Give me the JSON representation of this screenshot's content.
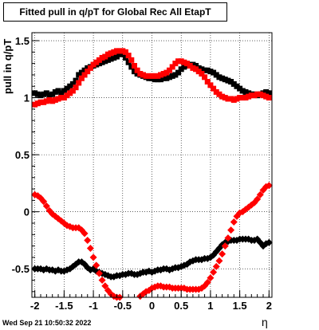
{
  "chart_data": {
    "type": "scatter",
    "title": "Fitted pull in q/pT for Global Rec All EtapT",
    "xlabel": "η",
    "ylabel": "pull in q/pT",
    "xlim": [
      -2.05,
      2.05
    ],
    "ylim": [
      -0.75,
      1.57
    ],
    "xticks": [
      "-2",
      "-1.5",
      "-1",
      "-0.5",
      "0",
      "0.5",
      "1",
      "1.5",
      "2"
    ],
    "yticks": [
      "-0.5",
      "0",
      "0.5",
      "1",
      "1.5"
    ],
    "grid": true,
    "series": [
      {
        "color": "#000000",
        "marker": "square",
        "x": [
          -2.0,
          -1.95,
          -1.9,
          -1.85,
          -1.8,
          -1.75,
          -1.7,
          -1.65,
          -1.6,
          -1.55,
          -1.5,
          -1.45,
          -1.4,
          -1.35,
          -1.3,
          -1.25,
          -1.2,
          -1.15,
          -1.1,
          -1.05,
          -1.0,
          -0.95,
          -0.9,
          -0.85,
          -0.8,
          -0.75,
          -0.7,
          -0.65,
          -0.6,
          -0.55,
          -0.5,
          -0.45,
          -0.4,
          -0.35,
          -0.3,
          -0.25,
          -0.2,
          -0.15,
          -0.1,
          -0.05,
          0.0,
          0.05,
          0.1,
          0.15,
          0.2,
          0.25,
          0.3,
          0.35,
          0.4,
          0.45,
          0.5,
          0.55,
          0.6,
          0.65,
          0.7,
          0.75,
          0.8,
          0.85,
          0.9,
          0.95,
          1.0,
          1.05,
          1.1,
          1.15,
          1.2,
          1.25,
          1.3,
          1.35,
          1.4,
          1.45,
          1.5,
          1.55,
          1.6,
          1.65,
          1.7,
          1.75,
          1.8,
          1.85,
          1.9,
          1.95,
          2.0
        ],
        "y": [
          1.04,
          1.03,
          1.02,
          1.03,
          1.04,
          1.02,
          1.03,
          1.05,
          1.06,
          1.04,
          1.06,
          1.08,
          1.1,
          1.12,
          1.15,
          1.2,
          1.22,
          1.24,
          1.26,
          1.27,
          1.28,
          1.29,
          1.3,
          1.31,
          1.32,
          1.33,
          1.34,
          1.35,
          1.36,
          1.38,
          1.38,
          1.35,
          1.31,
          1.27,
          1.23,
          1.21,
          1.2,
          1.19,
          1.18,
          1.17,
          1.17,
          1.16,
          1.16,
          1.16,
          1.17,
          1.17,
          1.18,
          1.19,
          1.2,
          1.22,
          1.25,
          1.27,
          1.28,
          1.29,
          1.29,
          1.28,
          1.26,
          1.25,
          1.24,
          1.24,
          1.23,
          1.22,
          1.2,
          1.18,
          1.17,
          1.16,
          1.15,
          1.14,
          1.12,
          1.1,
          1.08,
          1.06,
          1.05,
          1.04,
          1.03,
          1.03,
          1.02,
          1.03,
          1.04,
          1.05,
          1.04
        ]
      },
      {
        "color": "#ff0000",
        "marker": "square",
        "x": [
          -2.0,
          -1.95,
          -1.9,
          -1.85,
          -1.8,
          -1.75,
          -1.7,
          -1.65,
          -1.6,
          -1.55,
          -1.5,
          -1.45,
          -1.4,
          -1.35,
          -1.3,
          -1.25,
          -1.2,
          -1.15,
          -1.1,
          -1.05,
          -1.0,
          -0.95,
          -0.9,
          -0.85,
          -0.8,
          -0.75,
          -0.7,
          -0.65,
          -0.6,
          -0.55,
          -0.5,
          -0.45,
          -0.4,
          -0.35,
          -0.3,
          -0.25,
          -0.2,
          -0.15,
          -0.1,
          -0.05,
          0.0,
          0.05,
          0.1,
          0.15,
          0.2,
          0.25,
          0.3,
          0.35,
          0.4,
          0.45,
          0.5,
          0.55,
          0.6,
          0.65,
          0.7,
          0.75,
          0.8,
          0.85,
          0.9,
          0.95,
          1.0,
          1.05,
          1.1,
          1.15,
          1.2,
          1.25,
          1.3,
          1.35,
          1.4,
          1.45,
          1.5,
          1.55,
          1.6,
          1.65,
          1.7,
          1.75,
          1.8,
          1.85,
          1.9,
          1.95,
          2.0
        ],
        "y": [
          0.94,
          0.95,
          0.96,
          0.96,
          0.97,
          0.98,
          0.97,
          0.98,
          0.99,
          1.0,
          1.0,
          1.02,
          1.04,
          1.06,
          1.09,
          1.13,
          1.17,
          1.2,
          1.23,
          1.26,
          1.29,
          1.31,
          1.33,
          1.35,
          1.36,
          1.38,
          1.39,
          1.4,
          1.41,
          1.41,
          1.41,
          1.4,
          1.37,
          1.33,
          1.28,
          1.24,
          1.21,
          1.2,
          1.19,
          1.19,
          1.19,
          1.19,
          1.19,
          1.2,
          1.21,
          1.22,
          1.24,
          1.27,
          1.3,
          1.32,
          1.32,
          1.31,
          1.3,
          1.28,
          1.26,
          1.25,
          1.23,
          1.21,
          1.18,
          1.14,
          1.11,
          1.08,
          1.05,
          1.03,
          1.01,
          1.0,
          0.99,
          0.99,
          0.98,
          0.99,
          1.0,
          1.0,
          1.0,
          1.01,
          1.02,
          1.02,
          1.03,
          1.03,
          1.02,
          1.01,
          1.0
        ]
      },
      {
        "color": "#000000",
        "marker": "diamond",
        "x": [
          -2.0,
          -1.95,
          -1.9,
          -1.85,
          -1.8,
          -1.75,
          -1.7,
          -1.65,
          -1.6,
          -1.55,
          -1.5,
          -1.45,
          -1.4,
          -1.35,
          -1.3,
          -1.25,
          -1.2,
          -1.15,
          -1.1,
          -1.05,
          -1.0,
          -0.95,
          -0.9,
          -0.85,
          -0.8,
          -0.75,
          -0.7,
          -0.65,
          -0.6,
          -0.55,
          -0.5,
          -0.45,
          -0.4,
          -0.35,
          -0.3,
          -0.25,
          -0.2,
          -0.15,
          -0.1,
          -0.05,
          0.0,
          0.05,
          0.1,
          0.15,
          0.2,
          0.25,
          0.3,
          0.35,
          0.4,
          0.45,
          0.5,
          0.55,
          0.6,
          0.65,
          0.7,
          0.75,
          0.8,
          0.85,
          0.9,
          0.95,
          1.0,
          1.05,
          1.1,
          1.15,
          1.2,
          1.25,
          1.3,
          1.35,
          1.4,
          1.45,
          1.5,
          1.55,
          1.6,
          1.65,
          1.7,
          1.75,
          1.8,
          1.85,
          1.9,
          1.95,
          2.0
        ],
        "y": [
          -0.5,
          -0.5,
          -0.5,
          -0.51,
          -0.5,
          -0.51,
          -0.51,
          -0.52,
          -0.51,
          -0.52,
          -0.52,
          -0.51,
          -0.5,
          -0.48,
          -0.46,
          -0.44,
          -0.44,
          -0.46,
          -0.49,
          -0.51,
          -0.5,
          -0.52,
          -0.53,
          -0.54,
          -0.55,
          -0.56,
          -0.57,
          -0.57,
          -0.56,
          -0.56,
          -0.55,
          -0.55,
          -0.54,
          -0.54,
          -0.55,
          -0.55,
          -0.54,
          -0.53,
          -0.53,
          -0.52,
          -0.53,
          -0.52,
          -0.51,
          -0.51,
          -0.5,
          -0.5,
          -0.51,
          -0.5,
          -0.49,
          -0.49,
          -0.48,
          -0.47,
          -0.46,
          -0.44,
          -0.43,
          -0.42,
          -0.42,
          -0.42,
          -0.41,
          -0.41,
          -0.4,
          -0.38,
          -0.35,
          -0.32,
          -0.29,
          -0.27,
          -0.26,
          -0.25,
          -0.25,
          -0.25,
          -0.24,
          -0.24,
          -0.24,
          -0.24,
          -0.25,
          -0.25,
          -0.24,
          -0.27,
          -0.3,
          -0.28,
          -0.27
        ]
      },
      {
        "color": "#ff0000",
        "marker": "diamond",
        "x": [
          -2.0,
          -1.95,
          -1.9,
          -1.85,
          -1.8,
          -1.75,
          -1.7,
          -1.65,
          -1.6,
          -1.55,
          -1.5,
          -1.45,
          -1.4,
          -1.35,
          -1.3,
          -1.25,
          -1.2,
          -1.15,
          -1.1,
          -1.05,
          -1.0,
          -0.95,
          -0.9,
          -0.85,
          -0.8,
          -0.75,
          -0.7,
          -0.65,
          -0.6,
          -0.55,
          -0.2,
          -0.15,
          -0.1,
          -0.05,
          0.0,
          0.05,
          0.1,
          0.15,
          0.2,
          0.25,
          0.3,
          0.35,
          0.4,
          0.45,
          0.5,
          0.55,
          0.6,
          0.65,
          0.7,
          0.75,
          0.8,
          0.85,
          0.9,
          0.95,
          1.0,
          1.05,
          1.1,
          1.15,
          1.2,
          1.25,
          1.3,
          1.35,
          1.4,
          1.45,
          1.5,
          1.55,
          1.6,
          1.65,
          1.7,
          1.75,
          1.8,
          1.85,
          1.9,
          1.95,
          2.0
        ],
        "y": [
          0.15,
          0.14,
          0.12,
          0.09,
          0.05,
          0.01,
          -0.02,
          -0.04,
          -0.06,
          -0.08,
          -0.1,
          -0.12,
          -0.13,
          -0.14,
          -0.14,
          -0.14,
          -0.16,
          -0.19,
          -0.25,
          -0.32,
          -0.4,
          -0.47,
          -0.54,
          -0.6,
          -0.65,
          -0.69,
          -0.72,
          -0.74,
          -0.75,
          -0.75,
          -0.74,
          -0.72,
          -0.7,
          -0.69,
          -0.67,
          -0.66,
          -0.65,
          -0.65,
          -0.66,
          -0.66,
          -0.66,
          -0.67,
          -0.67,
          -0.67,
          -0.67,
          -0.67,
          -0.68,
          -0.68,
          -0.68,
          -0.68,
          -0.68,
          -0.67,
          -0.65,
          -0.62,
          -0.58,
          -0.53,
          -0.48,
          -0.43,
          -0.37,
          -0.3,
          -0.23,
          -0.16,
          -0.09,
          -0.04,
          -0.01,
          0.0,
          0.02,
          0.04,
          0.06,
          0.08,
          0.11,
          0.15,
          0.19,
          0.22,
          0.23
        ]
      }
    ]
  },
  "footer": {
    "timestamp": "Wed Sep 21 10:50:32 2022"
  }
}
